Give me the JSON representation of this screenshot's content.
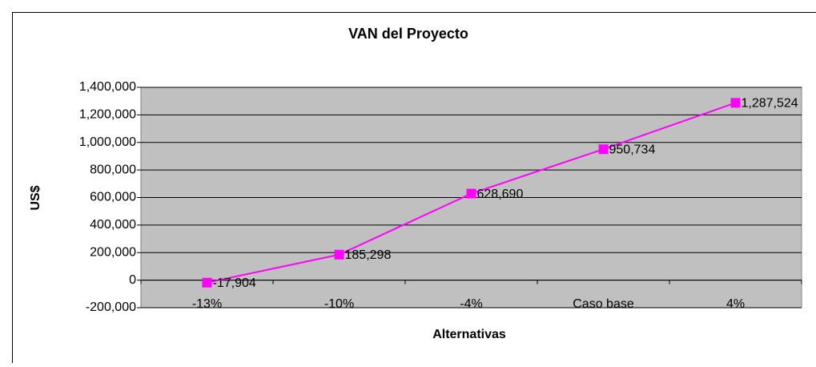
{
  "chart_data": {
    "type": "line",
    "title": "VAN del Proyecto",
    "x_label": "Alternativas",
    "y_label": "US$",
    "categories": [
      "-13%",
      "-10%",
      "-4%",
      "Caso base",
      "4%"
    ],
    "series": [
      {
        "name": "VAN",
        "color": "#ff00ff",
        "values": [
          -17904,
          185298,
          628690,
          950734,
          1287524
        ],
        "value_labels": [
          "-17,904",
          "185,298",
          "628,690",
          "950,734",
          "1,287,524"
        ]
      }
    ],
    "ylim": [
      -200000,
      1400000
    ],
    "yticks": [
      {
        "value": -200000,
        "label": "-200,000"
      },
      0,
      {
        "value": 200000,
        "label": "200,000"
      },
      {
        "value": 400000,
        "label": "400,000"
      },
      {
        "value": 600000,
        "label": "600,000"
      },
      {
        "value": 800000,
        "label": "800,000"
      },
      {
        "value": 1000000,
        "label": "1,000,000"
      },
      {
        "value": 1200000,
        "label": "1,200,000"
      },
      {
        "value": 1400000,
        "label": "1,400,000"
      }
    ],
    "grid": true,
    "plot_background": "#c0c0c0"
  }
}
